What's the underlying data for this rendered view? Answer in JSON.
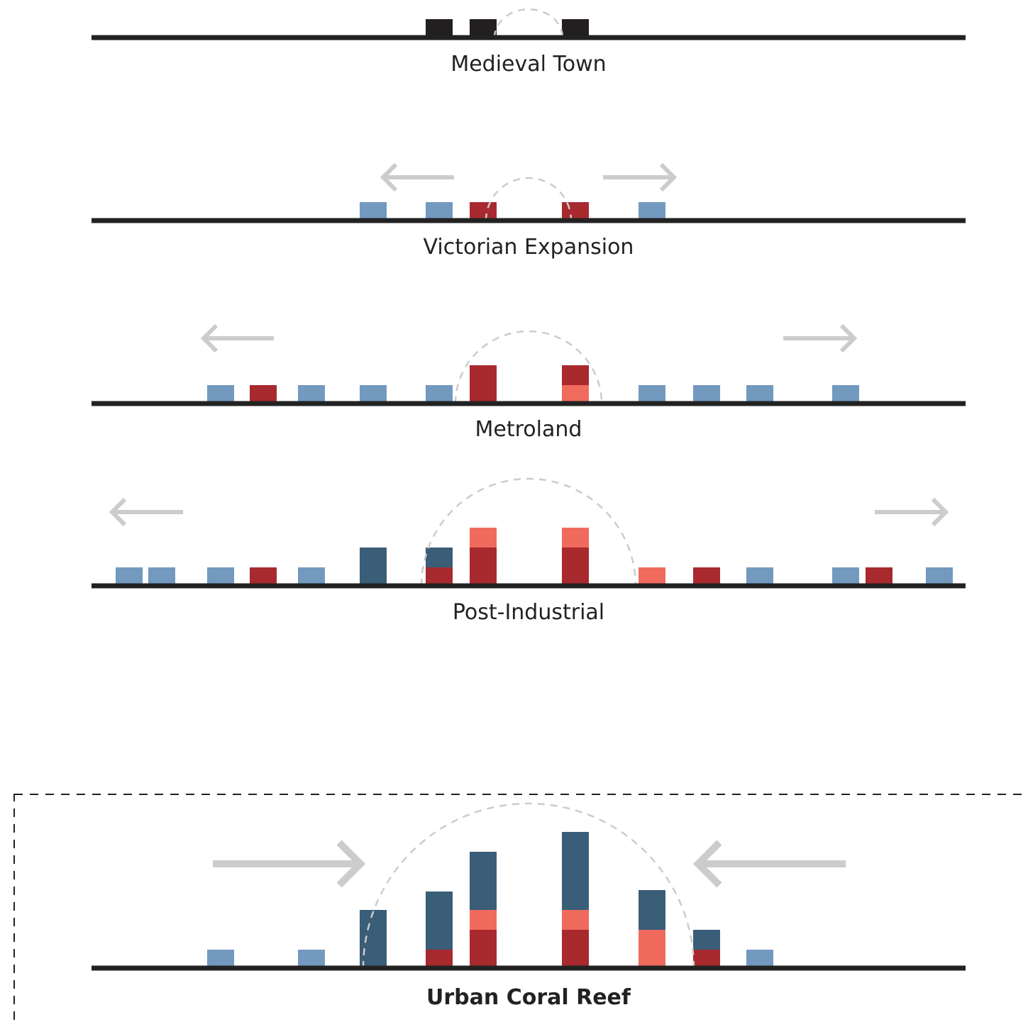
{
  "colors": {
    "ground": "#222222",
    "old_black": "#231f20",
    "light_blue": "#7399bf",
    "dark_red": "#a8292e",
    "salmon": "#f06b5d",
    "dark_blue": "#3a5d78",
    "guide_gray": "#cccccc"
  },
  "stages": [
    {
      "label": "Medieval Town",
      "bold": false
    },
    {
      "label": "Victorian Expansion",
      "bold": false
    },
    {
      "label": "Metroland",
      "bold": false
    },
    {
      "label": "Post-Industrial",
      "bold": false
    },
    {
      "label": "Urban Coral Reef",
      "bold": true
    }
  ]
}
